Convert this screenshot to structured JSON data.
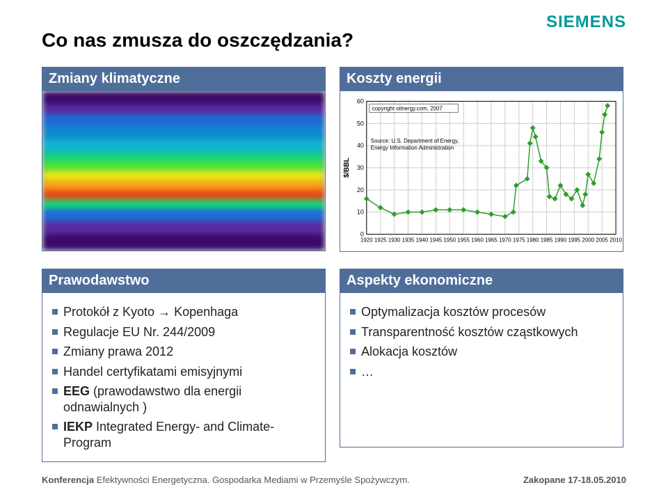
{
  "logo": {
    "text": "SIEMENS",
    "color": "#009999",
    "fontsize": 24
  },
  "title": {
    "text": "Co nas zmusza do oszczędzania?",
    "fontsize": 28,
    "color": "#000000"
  },
  "panels": {
    "top_left": {
      "header": "Zmiany klimatyczne"
    },
    "top_right": {
      "header": "Koszty energii"
    },
    "bot_left": {
      "header": "Prawodawstwo",
      "items": [
        "Protokół z Kyoto → Kopenhaga",
        "Regulacje EU Nr. 244/2009",
        "Zmiany prawa 2012",
        "Handel certyfikatami emisyjnymi",
        "EEG (prawodawstwo dla energii odnawialnych )",
        "IEKP Integrated Energy- and Climate-Program"
      ],
      "bold_prefixes": [
        "",
        "",
        "",
        "",
        "EEG",
        "IEKP"
      ]
    },
    "bot_right": {
      "header": "Aspekty ekonomiczne",
      "items": [
        "Optymalizacja kosztów procesów",
        "Transparentność kosztów cząstkowych",
        "Alokacja kosztów",
        "…"
      ]
    }
  },
  "chart": {
    "type": "line",
    "copyright": "copyright oilnergy.com, 2007",
    "source": "Source: U.S. Department of Energy,\nEnergy Information Administration",
    "ylabel": "$/BBL",
    "xlim": [
      1920,
      2010
    ],
    "ylim": [
      0,
      60
    ],
    "xtick_step": 5,
    "ytick_step": 10,
    "xticks": [
      1920,
      1925,
      1930,
      1935,
      1940,
      1945,
      1950,
      1955,
      1960,
      1965,
      1970,
      1975,
      1980,
      1985,
      1990,
      1995,
      2000,
      2005,
      2010
    ],
    "line_color": "#2e9e2e",
    "marker": "diamond",
    "marker_color": "#2e9e2e",
    "marker_size": 4,
    "grid_color": "#cccccc",
    "background_color": "#ffffff",
    "label_fontsize": 9,
    "data": [
      [
        1920,
        16
      ],
      [
        1925,
        12
      ],
      [
        1930,
        9
      ],
      [
        1935,
        10
      ],
      [
        1940,
        10
      ],
      [
        1945,
        11
      ],
      [
        1950,
        11
      ],
      [
        1955,
        11
      ],
      [
        1960,
        10
      ],
      [
        1965,
        9
      ],
      [
        1970,
        8
      ],
      [
        1973,
        10
      ],
      [
        1974,
        22
      ],
      [
        1978,
        25
      ],
      [
        1979,
        41
      ],
      [
        1980,
        48
      ],
      [
        1981,
        44
      ],
      [
        1983,
        33
      ],
      [
        1985,
        30
      ],
      [
        1986,
        17
      ],
      [
        1988,
        16
      ],
      [
        1990,
        22
      ],
      [
        1992,
        18
      ],
      [
        1994,
        16
      ],
      [
        1996,
        20
      ],
      [
        1998,
        13
      ],
      [
        1999,
        18
      ],
      [
        2000,
        27
      ],
      [
        2002,
        23
      ],
      [
        2004,
        34
      ],
      [
        2005,
        46
      ],
      [
        2006,
        54
      ],
      [
        2007,
        58
      ]
    ]
  },
  "footer": {
    "left": "Konferencja Efektywności Energetyczna. Gospodarka Mediami w Przemyśle Spożywczym.",
    "right": "Zakopane 17-18.05.2010",
    "fontsize": 13,
    "left_bold_prefix": "Konferencja"
  },
  "style": {
    "header_bg": "#4f6e9a",
    "header_fg": "#ffffff",
    "bullet_color": "#4f6e9a",
    "header_fontsize": 20,
    "body_fontsize": 18
  }
}
